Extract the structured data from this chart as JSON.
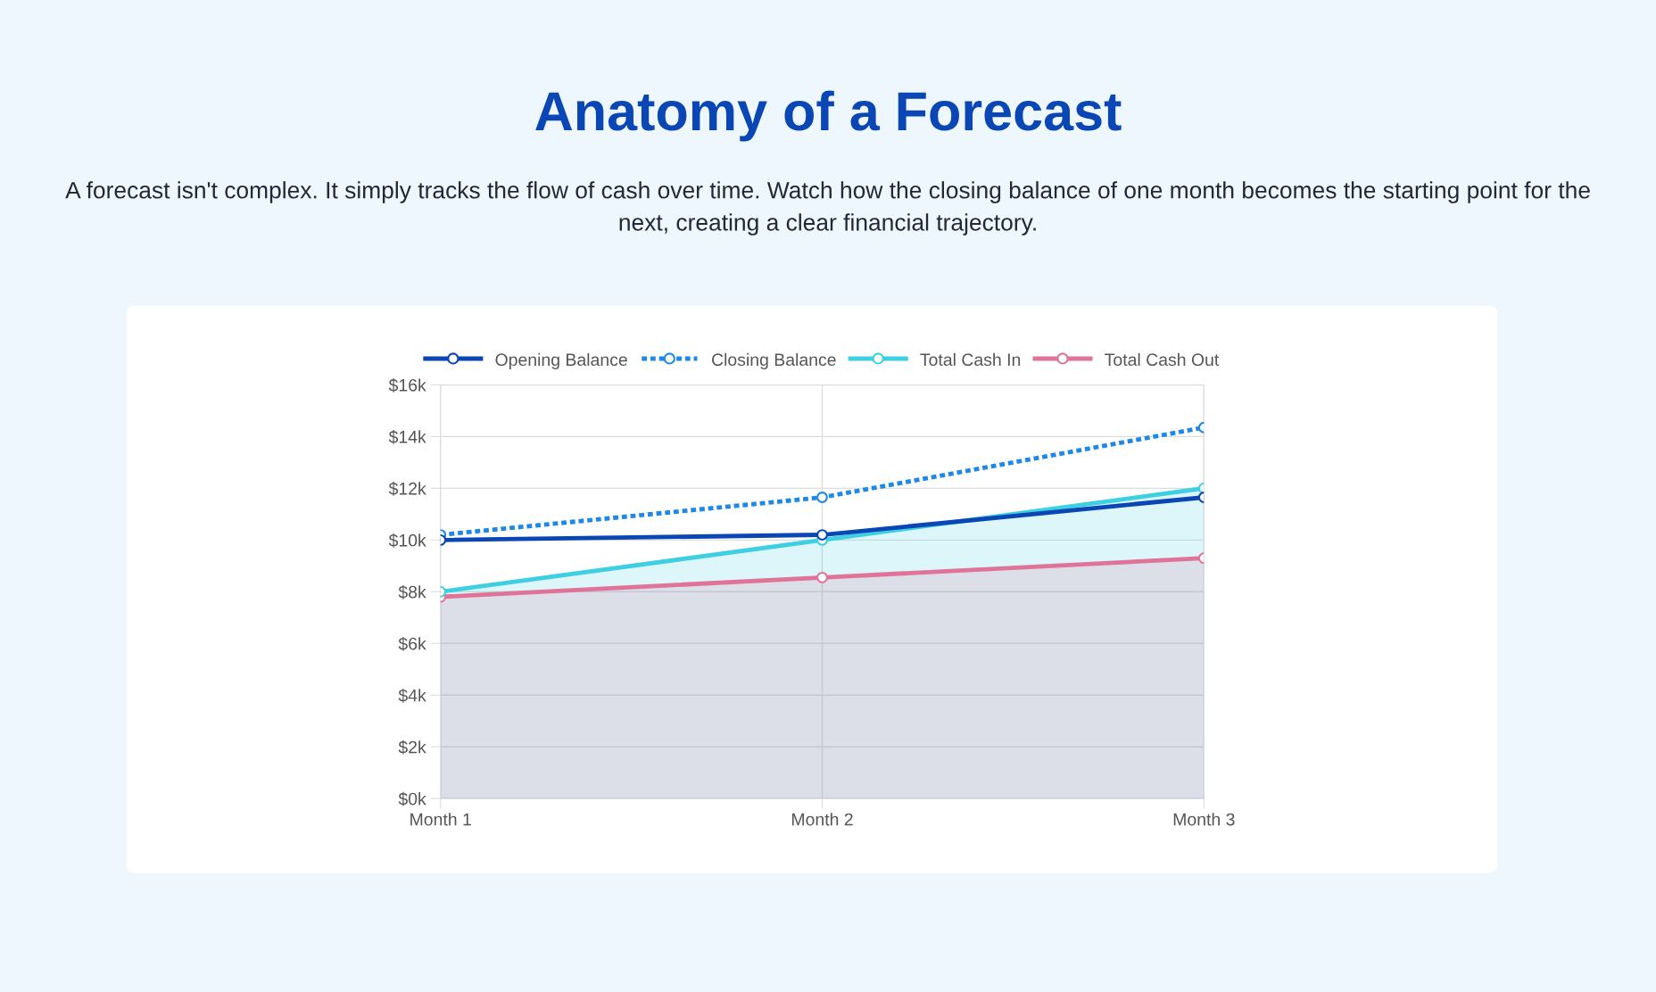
{
  "chart_data": {
    "type": "line",
    "title": "Anatomy of a Forecast",
    "subtitle": "A forecast isn't complex. It simply tracks the flow of cash over time. Watch how the closing balance of one month becomes the starting point for the next, creating a clear financial trajectory.",
    "categories": [
      "Month 1",
      "Month 2",
      "Month 3"
    ],
    "series": [
      {
        "name": "Opening Balance",
        "color": "#0a47b5",
        "line_style": "solid",
        "values": [
          10000,
          10200,
          11650
        ]
      },
      {
        "name": "Closing Balance",
        "color": "#1e88e5",
        "line_style": "dotted",
        "values": [
          10200,
          11650,
          14350
        ]
      },
      {
        "name": "Total Cash In",
        "type": "area",
        "color": "#3ecfe3",
        "line_style": "solid",
        "values": [
          8000,
          10000,
          12000
        ]
      },
      {
        "name": "Total Cash Out",
        "type": "area",
        "color": "#e07498",
        "line_style": "solid",
        "values": [
          7800,
          8550,
          9300
        ]
      }
    ],
    "ylim": [
      0,
      16000
    ],
    "yticks": [
      {
        "value": 0,
        "label": "$0k"
      },
      {
        "value": 2000,
        "label": "$2k"
      },
      {
        "value": 4000,
        "label": "$4k"
      },
      {
        "value": 6000,
        "label": "$6k"
      },
      {
        "value": 8000,
        "label": "$8k"
      },
      {
        "value": 10000,
        "label": "$10k"
      },
      {
        "value": 12000,
        "label": "$12k"
      },
      {
        "value": 14000,
        "label": "$14k"
      },
      {
        "value": 16000,
        "label": "$16k"
      }
    ],
    "grid": true,
    "legend": "top",
    "marker": "circle"
  }
}
